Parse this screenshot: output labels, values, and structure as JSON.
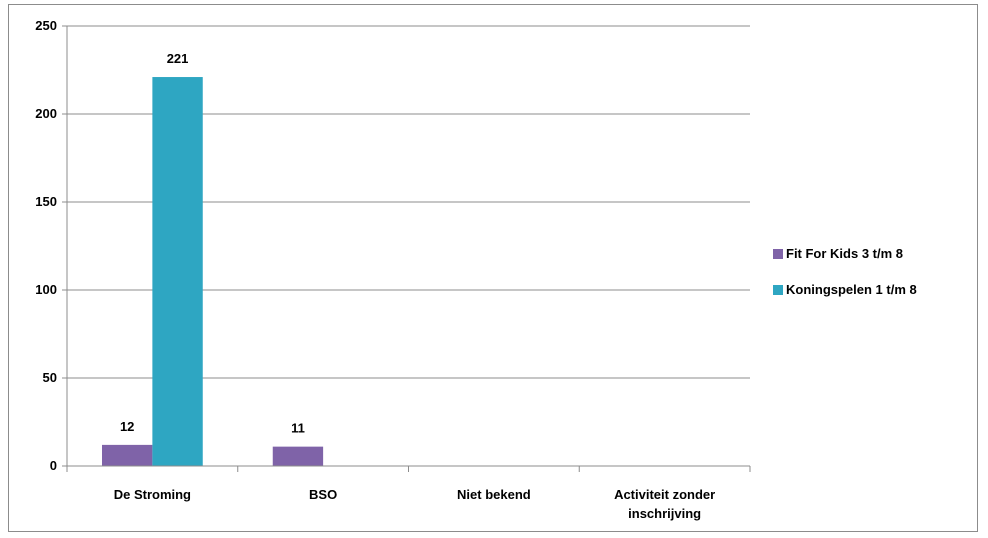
{
  "chart_data": {
    "type": "bar",
    "categories": [
      "De Stroming",
      "BSO",
      "Niet bekend",
      "Activiteit zonder inschrijving"
    ],
    "category_lines": [
      [
        "De Stroming"
      ],
      [
        "BSO"
      ],
      [
        "Niet bekend"
      ],
      [
        "Activiteit zonder",
        "inschrijving"
      ]
    ],
    "series": [
      {
        "name": "Fit For Kids 3 t/m 8",
        "values": [
          12,
          11,
          null,
          null
        ],
        "labels": [
          "12",
          "11",
          null,
          null
        ],
        "color": "#7f63a8"
      },
      {
        "name": "Koningspelen 1 t/m 8",
        "values": [
          221,
          null,
          null,
          null
        ],
        "labels": [
          "221",
          null,
          null,
          null
        ],
        "color": "#2ea6c2"
      }
    ],
    "ylim": [
      0,
      250
    ],
    "yticks": [
      0,
      50,
      100,
      150,
      200,
      250
    ],
    "grid": true,
    "legend": "right",
    "title": "",
    "xlabel": "",
    "ylabel": ""
  }
}
